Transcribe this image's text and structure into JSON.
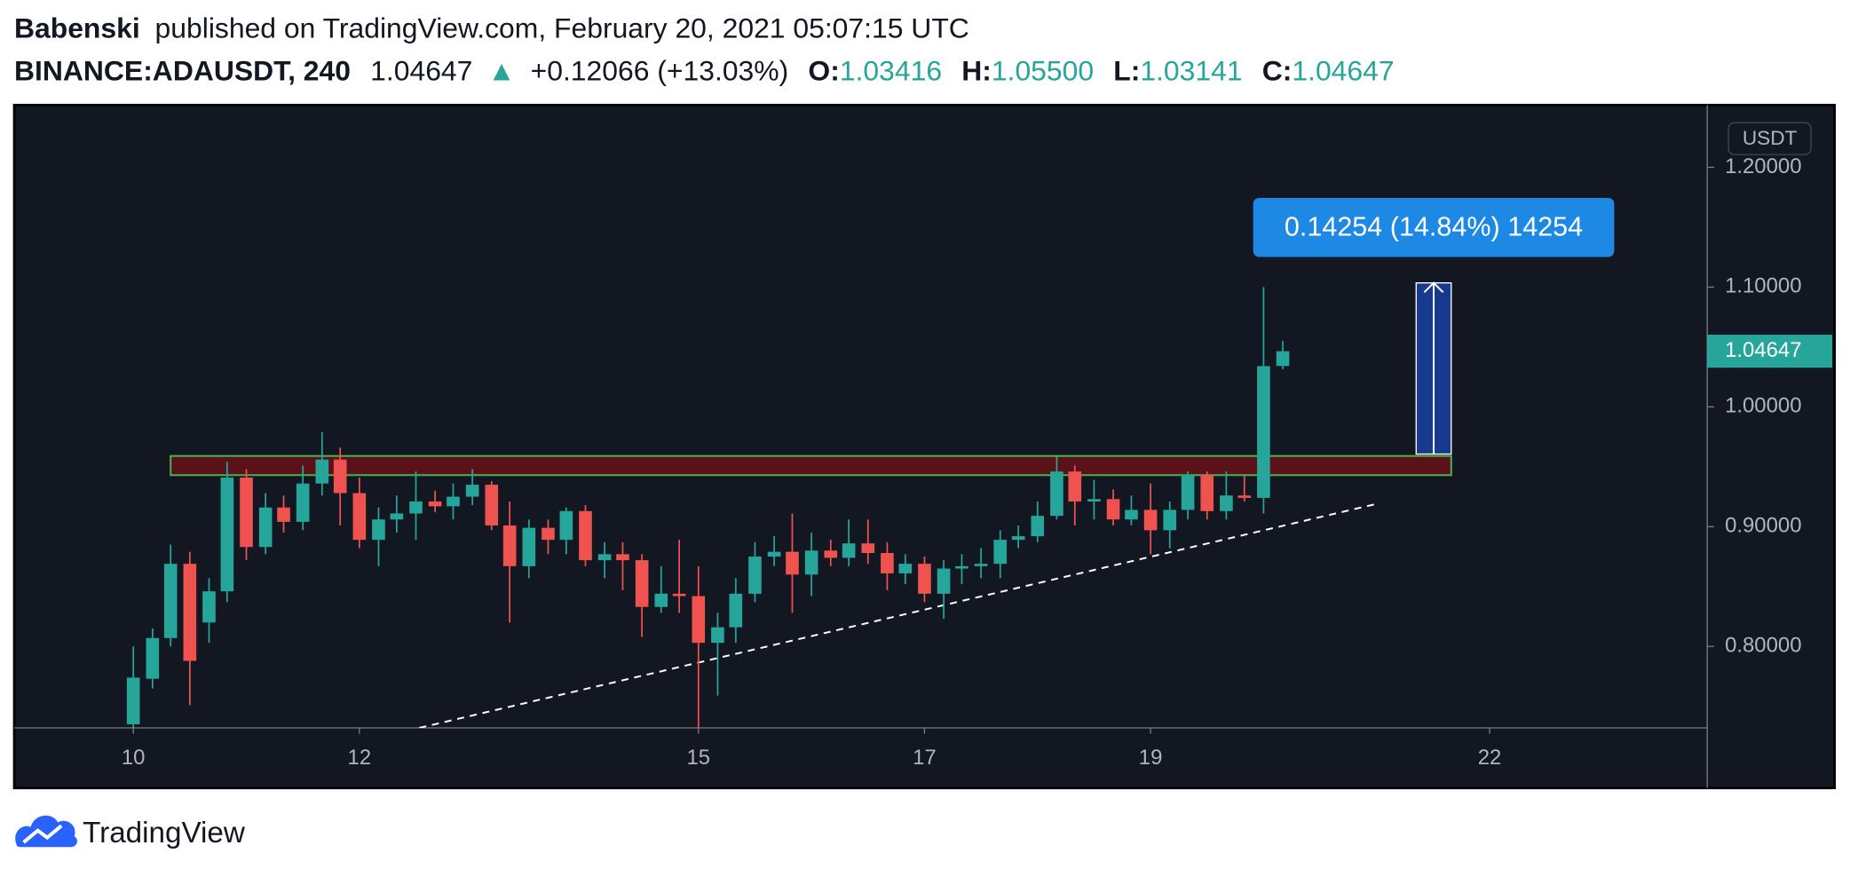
{
  "header": {
    "author": "Babenski",
    "published": "published on TradingView.com, February 20, 2021 05:07:15 UTC",
    "symbol": "BINANCE:ADAUSDT, 240",
    "last": "1.04647",
    "direction": "▲",
    "change": "+0.12066 (+13.03%)",
    "ohlc": [
      {
        "label": "O:",
        "value": "1.03416"
      },
      {
        "label": "H:",
        "value": "1.05500"
      },
      {
        "label": "L:",
        "value": "1.03141"
      },
      {
        "label": "C:",
        "value": "1.04647"
      }
    ]
  },
  "chart_data": {
    "type": "candlestick",
    "x": [
      10,
      10.17,
      10.33,
      10.5,
      10.67,
      10.83,
      11,
      11.17,
      11.33,
      11.5,
      11.67,
      11.83,
      12,
      12.17,
      12.33,
      12.5,
      12.67,
      12.83,
      13,
      13.17,
      13.33,
      13.5,
      13.67,
      13.83,
      14,
      14.17,
      14.33,
      14.5,
      14.67,
      14.83,
      15,
      15.17,
      15.33,
      15.5,
      15.67,
      15.83,
      16,
      16.17,
      16.33,
      16.5,
      16.67,
      16.83,
      17,
      17.17,
      17.33,
      17.5,
      17.67,
      17.83,
      18,
      18.17,
      18.33,
      18.5,
      18.67,
      18.83,
      19,
      19.17,
      19.33,
      19.5,
      19.67,
      19.83,
      20,
      20.17
    ],
    "open": [
      0.735,
      0.773,
      0.807,
      0.869,
      0.82,
      0.846,
      0.941,
      0.883,
      0.916,
      0.904,
      0.936,
      0.956,
      0.928,
      0.889,
      0.906,
      0.911,
      0.921,
      0.917,
      0.925,
      0.935,
      0.901,
      0.867,
      0.899,
      0.889,
      0.913,
      0.872,
      0.877,
      0.872,
      0.833,
      0.844,
      0.842,
      0.803,
      0.816,
      0.844,
      0.875,
      0.879,
      0.86,
      0.88,
      0.874,
      0.886,
      0.878,
      0.861,
      0.869,
      0.844,
      0.865,
      0.867,
      0.869,
      0.889,
      0.892,
      0.909,
      0.946,
      0.921,
      0.923,
      0.906,
      0.914,
      0.897,
      0.914,
      0.943,
      0.913,
      0.926,
      0.924,
      1.03416
    ],
    "high": [
      0.8,
      0.815,
      0.885,
      0.879,
      0.857,
      0.954,
      0.948,
      0.928,
      0.926,
      0.951,
      0.979,
      0.966,
      0.941,
      0.916,
      0.926,
      0.946,
      0.93,
      0.936,
      0.948,
      0.938,
      0.921,
      0.906,
      0.906,
      0.916,
      0.918,
      0.887,
      0.887,
      0.877,
      0.867,
      0.889,
      0.867,
      0.828,
      0.857,
      0.887,
      0.892,
      0.911,
      0.895,
      0.889,
      0.906,
      0.906,
      0.887,
      0.877,
      0.875,
      0.872,
      0.877,
      0.882,
      0.897,
      0.901,
      0.921,
      0.959,
      0.951,
      0.939,
      0.931,
      0.926,
      0.936,
      0.921,
      0.946,
      0.946,
      0.946,
      0.943,
      1.1,
      1.055
    ],
    "low": [
      0.72,
      0.765,
      0.8,
      0.751,
      0.803,
      0.837,
      0.872,
      0.877,
      0.895,
      0.897,
      0.926,
      0.901,
      0.882,
      0.867,
      0.895,
      0.889,
      0.912,
      0.906,
      0.918,
      0.897,
      0.82,
      0.857,
      0.877,
      0.877,
      0.867,
      0.857,
      0.847,
      0.808,
      0.828,
      0.828,
      0.73,
      0.759,
      0.803,
      0.837,
      0.867,
      0.828,
      0.842,
      0.867,
      0.867,
      0.869,
      0.847,
      0.852,
      0.837,
      0.823,
      0.852,
      0.857,
      0.857,
      0.882,
      0.887,
      0.906,
      0.901,
      0.906,
      0.901,
      0.901,
      0.877,
      0.882,
      0.906,
      0.906,
      0.906,
      0.921,
      0.911,
      1.03141
    ],
    "close": [
      0.774,
      0.807,
      0.869,
      0.788,
      0.846,
      0.941,
      0.883,
      0.916,
      0.904,
      0.936,
      0.956,
      0.928,
      0.889,
      0.906,
      0.911,
      0.921,
      0.917,
      0.925,
      0.935,
      0.901,
      0.867,
      0.899,
      0.889,
      0.913,
      0.872,
      0.877,
      0.872,
      0.833,
      0.844,
      0.842,
      0.803,
      0.816,
      0.844,
      0.875,
      0.879,
      0.86,
      0.88,
      0.874,
      0.886,
      0.878,
      0.861,
      0.869,
      0.844,
      0.865,
      0.867,
      0.869,
      0.889,
      0.892,
      0.909,
      0.946,
      0.921,
      0.923,
      0.906,
      0.914,
      0.897,
      0.914,
      0.943,
      0.913,
      0.926,
      0.924,
      1.034,
      1.04647
    ],
    "up_color": "#26a69a",
    "down_color": "#ef5350",
    "xlim": [
      8.946,
      23.925
    ],
    "ylim": [
      0.732,
      1.252
    ],
    "xticks": [
      10,
      12,
      15,
      17,
      19,
      22
    ],
    "yticks": [
      {
        "value": 0.8,
        "label": "0.80000"
      },
      {
        "value": 0.9,
        "label": "0.90000"
      },
      {
        "value": 1.0,
        "label": "1.00000"
      },
      {
        "value": 1.1,
        "label": "1.10000"
      },
      {
        "value": 1.2,
        "label": "1.20000"
      }
    ],
    "y_axis_label": "USDT",
    "last_price": {
      "value": 1.04647,
      "label": "1.04647"
    },
    "resistance_zone": {
      "x": [
        10.33,
        21.66
      ],
      "y": [
        0.943,
        0.959
      ]
    },
    "trend_line": {
      "x": [
        12.53,
        21.0
      ],
      "y": [
        0.732,
        0.919
      ]
    },
    "measure": {
      "x": [
        21.35,
        21.66
      ],
      "y": [
        0.9606,
        1.1035
      ],
      "label": "0.14254 (14.84%) 14254"
    }
  },
  "footer": {
    "brand": "TradingView"
  }
}
